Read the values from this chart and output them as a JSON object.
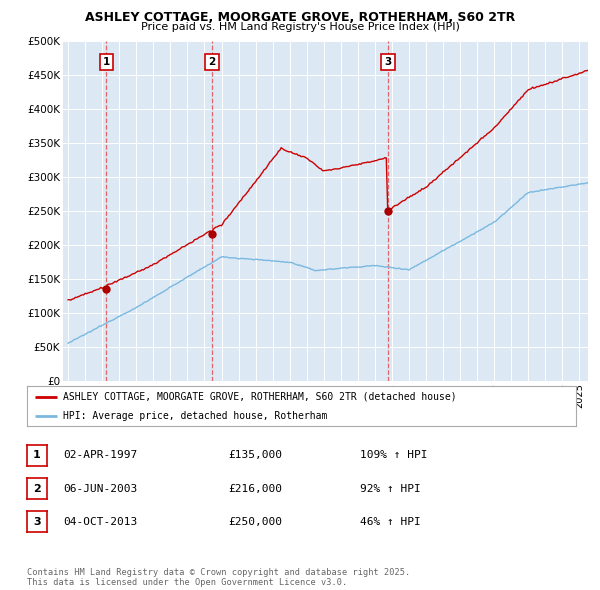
{
  "title1": "ASHLEY COTTAGE, MOORGATE GROVE, ROTHERHAM, S60 2TR",
  "title2": "Price paid vs. HM Land Registry's House Price Index (HPI)",
  "bg_color": "#dce9f5",
  "legend_label_red": "ASHLEY COTTAGE, MOORGATE GROVE, ROTHERHAM, S60 2TR (detached house)",
  "legend_label_blue": "HPI: Average price, detached house, Rotherham",
  "sale_dates": [
    1997.25,
    2003.43,
    2013.76
  ],
  "sale_prices": [
    135000,
    216000,
    250000
  ],
  "sale_labels": [
    "1",
    "2",
    "3"
  ],
  "table_rows": [
    [
      "1",
      "02-APR-1997",
      "£135,000",
      "109% ↑ HPI"
    ],
    [
      "2",
      "06-JUN-2003",
      "£216,000",
      "92% ↑ HPI"
    ],
    [
      "3",
      "04-OCT-2013",
      "£250,000",
      "46% ↑ HPI"
    ]
  ],
  "footer": "Contains HM Land Registry data © Crown copyright and database right 2025.\nThis data is licensed under the Open Government Licence v3.0.",
  "ylim": [
    0,
    500000
  ],
  "xlim": [
    1994.7,
    2025.5
  ],
  "yticks": [
    0,
    50000,
    100000,
    150000,
    200000,
    250000,
    300000,
    350000,
    400000,
    450000,
    500000
  ],
  "ytick_labels": [
    "£0",
    "£50K",
    "£100K",
    "£150K",
    "£200K",
    "£250K",
    "£300K",
    "£350K",
    "£400K",
    "£450K",
    "£500K"
  ]
}
